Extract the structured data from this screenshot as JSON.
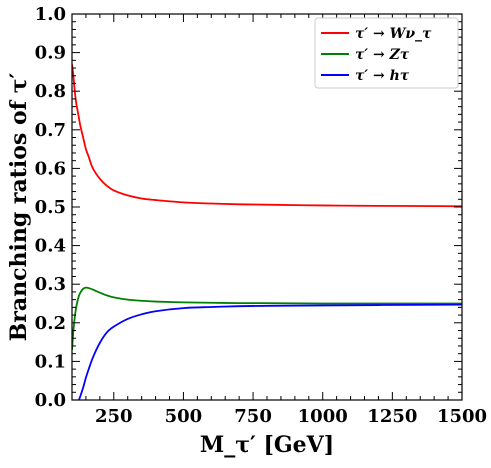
{
  "chart_data": {
    "type": "line",
    "xlabel": "M_τ′ [GeV]",
    "ylabel": "Branching ratios of τ′",
    "xlim": [
      100,
      1500
    ],
    "ylim": [
      0.0,
      1.0
    ],
    "x_ticks": [
      250,
      500,
      750,
      1000,
      1250,
      1500
    ],
    "x_tick_labels": [
      "250",
      "500",
      "750",
      "1000",
      "1250",
      "1500"
    ],
    "y_ticks": [
      0.0,
      0.1,
      0.2,
      0.3,
      0.4,
      0.5,
      0.6,
      0.7,
      0.8,
      0.9,
      1.0
    ],
    "y_tick_labels": [
      "0.0",
      "0.1",
      "0.2",
      "0.3",
      "0.4",
      "0.5",
      "0.6",
      "0.7",
      "0.8",
      "0.9",
      "1.0"
    ],
    "grid": false,
    "legend_position": "top-right",
    "series": [
      {
        "name": "τ′ → Wν_τ",
        "color": "#ff0000",
        "x": [
          100,
          105,
          110,
          115,
          120,
          125,
          130,
          140,
          150,
          160,
          175,
          200,
          225,
          250,
          300,
          350,
          400,
          500,
          600,
          700,
          800,
          1000,
          1200,
          1500
        ],
        "y": [
          0.87,
          0.84,
          0.8,
          0.77,
          0.75,
          0.73,
          0.71,
          0.68,
          0.65,
          0.63,
          0.6,
          0.573,
          0.555,
          0.543,
          0.53,
          0.522,
          0.518,
          0.512,
          0.509,
          0.507,
          0.506,
          0.504,
          0.503,
          0.502
        ]
      },
      {
        "name": "τ′ → Zτ",
        "color": "#008000",
        "x": [
          100,
          105,
          110,
          115,
          120,
          125,
          130,
          140,
          150,
          160,
          175,
          200,
          225,
          250,
          300,
          350,
          400,
          500,
          600,
          700,
          800,
          1000,
          1200,
          1500
        ],
        "y": [
          0.13,
          0.18,
          0.215,
          0.24,
          0.257,
          0.27,
          0.278,
          0.288,
          0.291,
          0.29,
          0.286,
          0.278,
          0.271,
          0.266,
          0.26,
          0.257,
          0.255,
          0.253,
          0.252,
          0.251,
          0.251,
          0.25,
          0.25,
          0.25
        ]
      },
      {
        "name": "τ′ → hτ",
        "color": "#0000ff",
        "x": [
          125,
          130,
          140,
          150,
          160,
          175,
          200,
          225,
          250,
          300,
          350,
          400,
          500,
          600,
          700,
          800,
          1000,
          1200,
          1500
        ],
        "y": [
          0.0,
          0.01,
          0.032,
          0.058,
          0.08,
          0.11,
          0.148,
          0.175,
          0.19,
          0.21,
          0.222,
          0.23,
          0.238,
          0.241,
          0.243,
          0.244,
          0.245,
          0.246,
          0.247
        ]
      }
    ]
  }
}
